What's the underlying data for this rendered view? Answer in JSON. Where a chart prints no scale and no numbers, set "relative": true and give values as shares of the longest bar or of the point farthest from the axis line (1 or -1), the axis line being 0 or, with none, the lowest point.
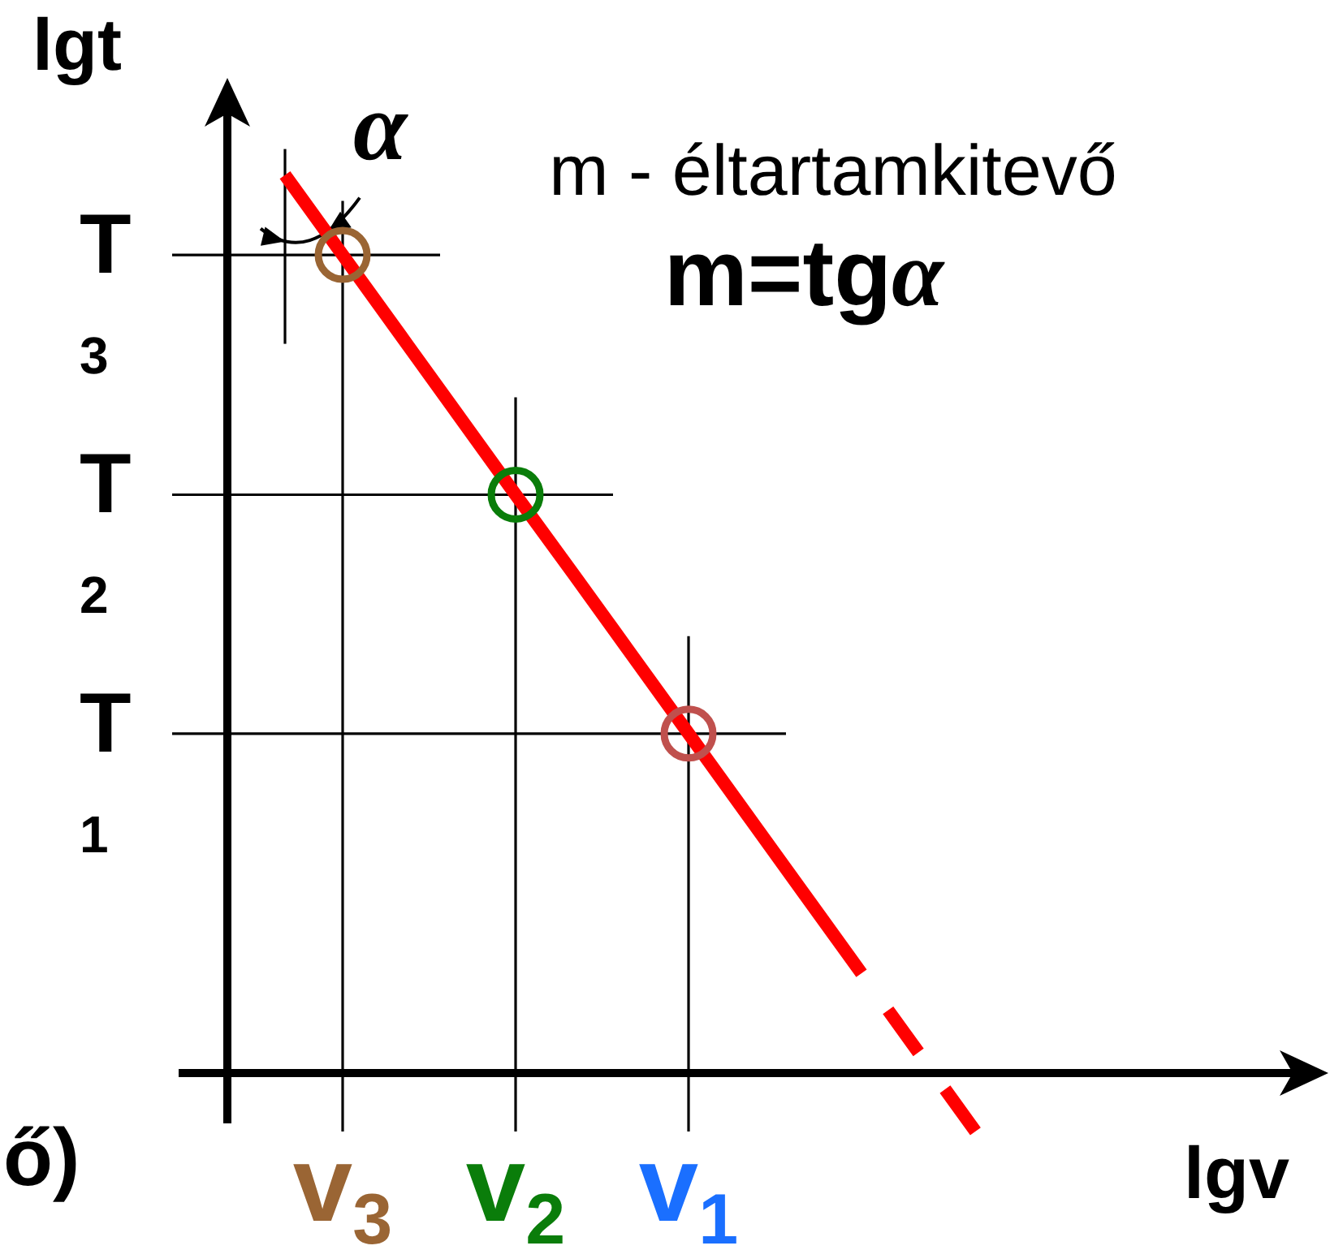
{
  "chart_data": {
    "type": "line",
    "relative": true,
    "grid": "x",
    "xlabel": "lgv",
    "ylabel": "lgt",
    "annotations": [
      "α",
      "m - éltartamkitevő",
      "m=tgα",
      "ő)"
    ],
    "categories": [
      null,
      "v$_{3}$",
      null,
      null,
      "v$_{2}$",
      null,
      null,
      "v$_{1}$",
      null,
      null,
      null,
      null,
      null
    ],
    "ref_lines": [
      {
        "axis": "y",
        "value": 0.911,
        "label": "T$_{3}$"
      },
      {
        "axis": "y",
        "value": 0.644,
        "label": "T$_{2}$"
      },
      {
        "axis": "y",
        "value": 0.378,
        "label": "T$_{1}$"
      }
    ],
    "series": [
      {
        "color": "#ff0000",
        "values": [
          1,
          0.911,
          0.822,
          0.733,
          0.644,
          0.556,
          0.467,
          0.378,
          0.289,
          0.2,
          0.111,
          null,
          null
        ],
        "line_style": "solid"
      },
      {
        "color": "#ff0000",
        "values": [
          null,
          null,
          null,
          null,
          null,
          null,
          null,
          null,
          null,
          null,
          0.111,
          0.022,
          -0.067
        ],
        "line_style": "dashed"
      },
      {
        "type": "scatter",
        "values": [
          null,
          0.911,
          null,
          null,
          0.644,
          null,
          null,
          0.378,
          null,
          null,
          null,
          null,
          null
        ],
        "colors": [
          null,
          "#9a6534",
          null,
          null,
          "#0a7d0a",
          null,
          null,
          "#c0504d",
          null,
          null,
          null,
          null,
          null
        ],
        "marker": "circle"
      }
    ]
  }
}
